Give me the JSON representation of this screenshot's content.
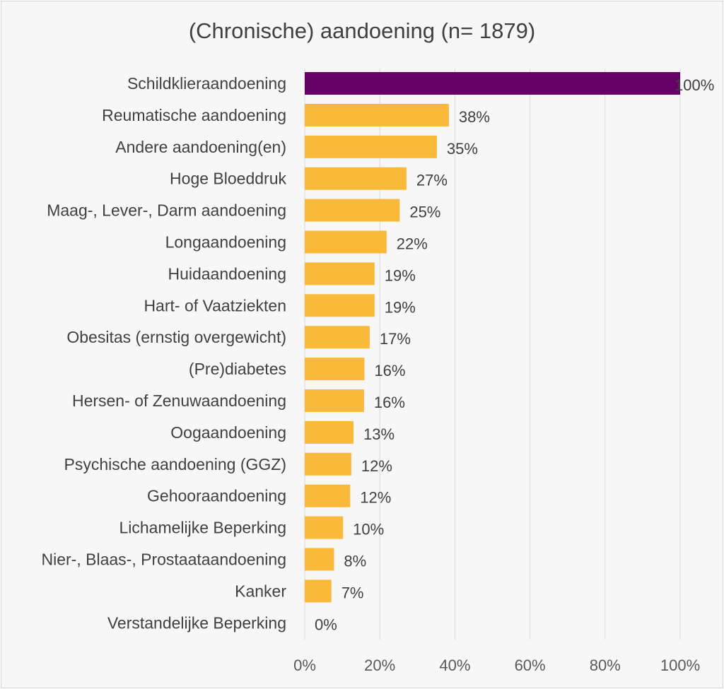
{
  "chart_data": {
    "type": "bar",
    "orientation": "horizontal",
    "title": "(Chronische) aandoening (n= 1879)",
    "categories": [
      "Schildklieraandoening",
      "Reumatische aandoening",
      "Andere aandoening(en)",
      "Hoge Bloeddruk",
      "Maag-, Lever-, Darm aandoening",
      "Longaandoening",
      "Huidaandoening",
      "Hart- of Vaatziekten",
      "Obesitas (ernstig overgewicht)",
      "(Pre)diabetes",
      "Hersen- of Zenuwaandoening",
      "Oogaandoening",
      "Psychische aandoening (GGZ)",
      "Gehooraandoening",
      "Lichamelijke Beperking",
      "Nier-, Blaas-, Prostaataandoening",
      "Kanker",
      "Verstandelijke Beperking"
    ],
    "values": [
      100,
      38.4,
      35.2,
      27.1,
      25.3,
      21.8,
      18.6,
      18.6,
      17.3,
      15.9,
      15.8,
      13.0,
      12.4,
      12.1,
      10.2,
      7.8,
      7.1,
      0
    ],
    "value_labels": [
      "100%",
      "38%",
      "35%",
      "27%",
      "25%",
      "22%",
      "19%",
      "19%",
      "17%",
      "16%",
      "16%",
      "13%",
      "12%",
      "12%",
      "10%",
      "8%",
      "7%",
      "0%"
    ],
    "x_ticks": [
      "0%",
      "20%",
      "40%",
      "60%",
      "80%",
      "100%"
    ],
    "xlim": [
      0,
      100
    ],
    "xlabel": "",
    "ylabel": "",
    "grid": "vertical",
    "legend": "none",
    "colors": {
      "highlight": "#660066",
      "bar": "#fbb93a",
      "background": "#f7f7f7",
      "text": "#404040",
      "gridline": "#d9d9d9"
    },
    "highlight_index": 0
  }
}
